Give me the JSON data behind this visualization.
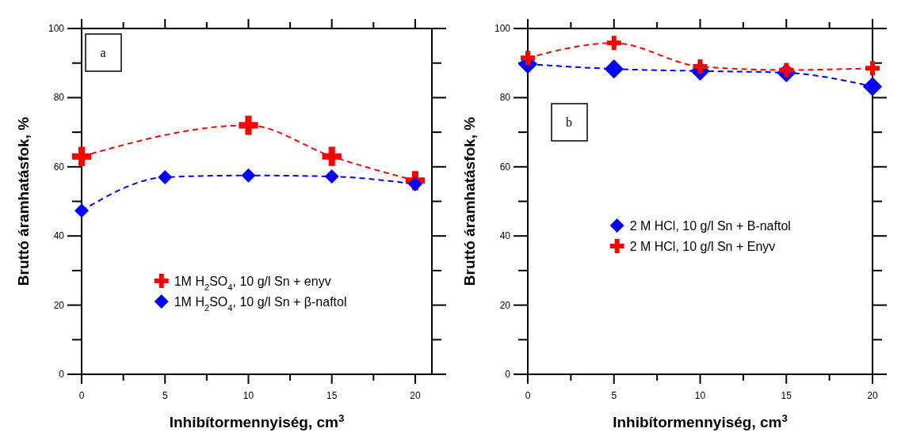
{
  "chart_data": [
    {
      "type": "line",
      "xlabel": "Inhibítormennyiség, cm$^{3}$",
      "ylabel": "Bruttó áramhatásfok, %",
      "annotations": [
        "a"
      ],
      "legend": "bottom",
      "xlim": [
        0,
        21
      ],
      "ylim": [
        0,
        100
      ],
      "xticks": [
        0,
        {
          "value": 2.5,
          "label": null
        },
        5,
        {
          "value": 7.5,
          "label": null
        },
        10,
        {
          "value": 12.5,
          "label": null
        },
        15,
        {
          "value": 17.5,
          "label": null
        },
        20
      ],
      "yticks": [
        0,
        {
          "value": 10,
          "label": null
        },
        20,
        {
          "value": 30,
          "label": null
        },
        40,
        {
          "value": 50,
          "label": null
        },
        60,
        {
          "value": 70,
          "label": null
        },
        80,
        {
          "value": 90,
          "label": null
        },
        100
      ],
      "line_style": "dashed",
      "series": [
        {
          "name": "1M H$_{2}$SO$_{4}$, 10 g/l Sn + enyv",
          "color": "#ff0000",
          "marker": "cross",
          "x": [
            0,
            10,
            15,
            20
          ],
          "values": [
            63,
            72,
            63,
            56
          ]
        },
        {
          "name": "1M H$_{2}$SO$_{4}$, 10 g/l Sn + β-naftol",
          "color": "#0000ff",
          "marker": "diamond",
          "x": [
            0,
            5,
            10,
            15,
            20
          ],
          "values": [
            47.3,
            57,
            57.5,
            57.2,
            55
          ]
        }
      ]
    },
    {
      "type": "line",
      "xlabel": "Inhibítormennyiség, cm$^{3}$",
      "ylabel": "Bruttó áramhatásfok, %",
      "annotations": [
        "b"
      ],
      "legend": "center",
      "xlim": [
        0,
        20
      ],
      "ylim": [
        0,
        100
      ],
      "xticks": [
        0,
        {
          "value": 2.5,
          "label": null
        },
        5,
        {
          "value": 7.5,
          "label": null
        },
        10,
        {
          "value": 12.5,
          "label": null
        },
        15,
        {
          "value": 17.5,
          "label": null
        },
        20
      ],
      "yticks": [
        0,
        {
          "value": 10,
          "label": null
        },
        20,
        {
          "value": 30,
          "label": null
        },
        40,
        {
          "value": 50,
          "label": null
        },
        60,
        {
          "value": 70,
          "label": null
        },
        80,
        {
          "value": 90,
          "label": null
        },
        100
      ],
      "line_style": "dashed",
      "series": [
        {
          "name": "2 M HCl, 10 g/l Sn + B-naftol",
          "color": "#0000ff",
          "marker": "diamond",
          "x": [
            0,
            5,
            10,
            15,
            20
          ],
          "values": [
            89.7,
            88.3,
            87.7,
            87.2,
            83.2
          ]
        },
        {
          "name": "2 M HCl, 10 g/l Sn + Enyv",
          "color": "#ff0000",
          "marker": "cross",
          "x": [
            0,
            5,
            10,
            15,
            20
          ],
          "values": [
            91.5,
            95.8,
            89,
            88,
            88.5
          ]
        }
      ]
    }
  ]
}
